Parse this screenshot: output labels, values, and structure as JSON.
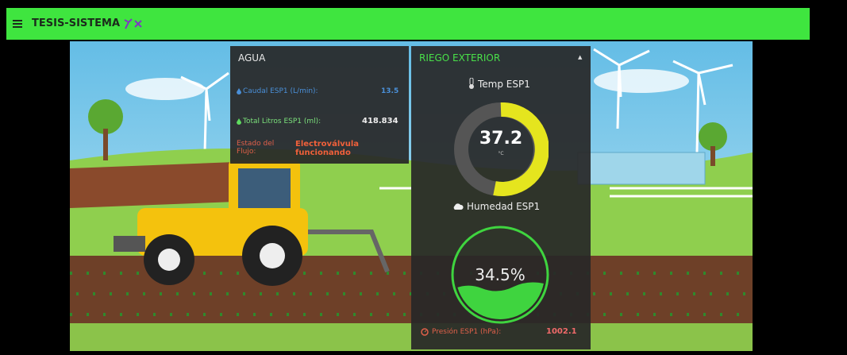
{
  "header": {
    "title": "TESIS-SISTEMA"
  },
  "agua": {
    "title": "AGUA",
    "rows": [
      {
        "label": "Caudal ESP1 (L/min):",
        "value": "13.5"
      },
      {
        "label": "Total Litros ESP1 (ml):",
        "value": "418.834"
      },
      {
        "label": "Estado del Flujo:",
        "value": "Electroválvula funcionando"
      }
    ]
  },
  "riego": {
    "title": "RIEGO EXTERIOR",
    "temp": {
      "label": "Temp ESP1",
      "value": "37.2",
      "unit": "°C"
    },
    "humedad": {
      "label": "Humedad ESP1",
      "value": "34.5%"
    },
    "presion": {
      "label": "Presión ESP1 (hPa):",
      "value": "1002.1"
    }
  }
}
